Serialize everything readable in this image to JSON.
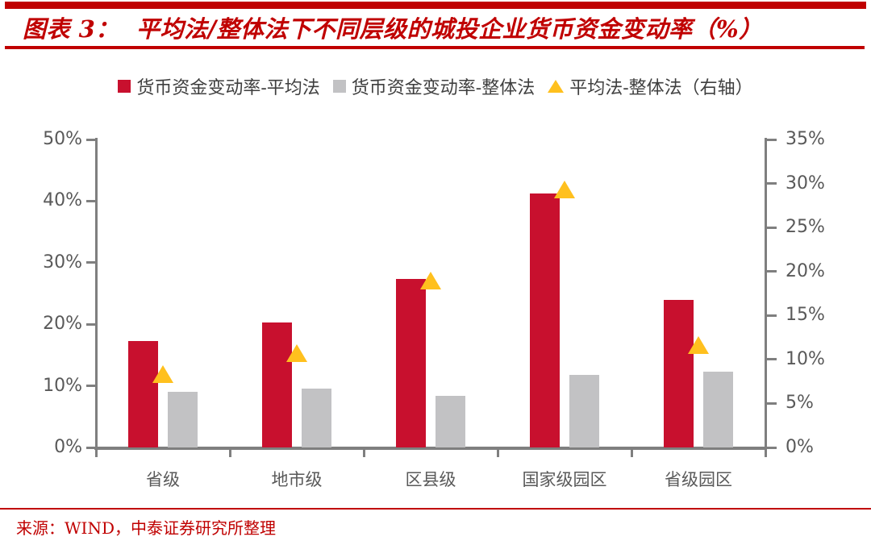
{
  "header": {
    "title": "图表 3：  平均法/整体法下不同层级的城投企业货币资金变动率（%）"
  },
  "legend": [
    {
      "label": "货币资金变动率-平均法",
      "marker": "square",
      "color": "#C8102E"
    },
    {
      "label": "货币资金变动率-整体法",
      "marker": "square",
      "color": "#C2C2C4"
    },
    {
      "label": "平均法-整体法（右轴）",
      "marker": "triangle",
      "color": "#FFC01E"
    }
  ],
  "chart_data": {
    "type": "bar",
    "title": "平均法/整体法下不同层级的城投企业货币资金变动率（%）",
    "categories": [
      "省级",
      "地市级",
      "区县级",
      "国家级园区",
      "省级园区"
    ],
    "series": [
      {
        "name": "货币资金变动率-平均法",
        "type": "bar",
        "axis": "left",
        "color": "#C8102E",
        "values": [
          17.3,
          20.3,
          27.4,
          41.2,
          23.9
        ]
      },
      {
        "name": "货币资金变动率-整体法",
        "type": "bar",
        "axis": "left",
        "color": "#C2C2C4",
        "values": [
          9.0,
          9.6,
          8.4,
          11.8,
          12.3
        ]
      },
      {
        "name": "平均法-整体法（右轴）",
        "type": "triangle",
        "axis": "right",
        "color": "#FFC01E",
        "values": [
          8.3,
          10.7,
          19.0,
          29.3,
          11.6
        ]
      }
    ],
    "left_axis": {
      "min": 0,
      "max": 50,
      "step": 10,
      "tick_labels": [
        "0%",
        "10%",
        "20%",
        "30%",
        "40%",
        "50%"
      ]
    },
    "right_axis": {
      "min": 0,
      "max": 35,
      "step": 5,
      "tick_labels": [
        "0%",
        "5%",
        "10%",
        "15%",
        "20%",
        "25%",
        "30%",
        "35%"
      ]
    },
    "grid": false,
    "legend_position": "top"
  },
  "source": {
    "text": "来源：WIND，中泰证券研究所整理"
  }
}
